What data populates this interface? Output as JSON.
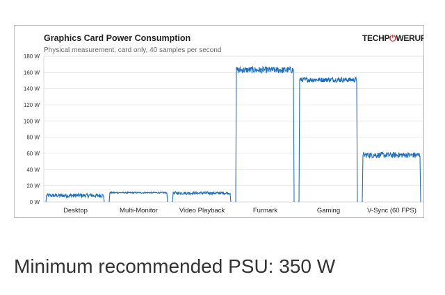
{
  "logo": {
    "part1": "TECHP",
    "part2": "WERUP"
  },
  "chart_data": {
    "type": "line",
    "title": "Graphics Card Power Consumption",
    "subtitle": "Physical measurement, card only, 40 samples per second",
    "xlabel": "",
    "ylabel": "",
    "ylim": [
      0,
      180
    ],
    "yticks": [
      0,
      20,
      40,
      60,
      80,
      100,
      120,
      140,
      160,
      180
    ],
    "ytick_unit": "W",
    "grid": true,
    "categories": [
      "Desktop",
      "Multi-Monitor",
      "Video Playback",
      "Furmark",
      "Gaming",
      "V-Sync (60 FPS)"
    ],
    "series": [
      {
        "color": "#1f6fbf",
        "segments": [
          {
            "category": "Desktop",
            "level": 8,
            "noise": 2.5
          },
          {
            "category": "Multi-Monitor",
            "level": 11.5,
            "noise": 0.8
          },
          {
            "category": "Video Playback",
            "level": 11,
            "noise": 1.8
          },
          {
            "category": "Furmark",
            "level": 163,
            "noise": 4
          },
          {
            "category": "Gaming",
            "level": 151,
            "noise": 3
          },
          {
            "category": "V-Sync (60 FPS)",
            "level": 58,
            "noise": 3.5
          }
        ]
      }
    ]
  },
  "caption": "Minimum recommended PSU: 350 W"
}
